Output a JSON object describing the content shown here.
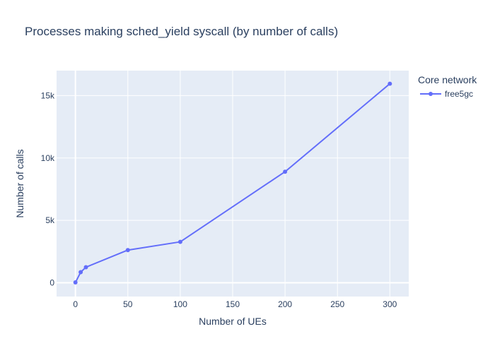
{
  "chart_data": {
    "type": "line",
    "title": "Processes making sched_yield syscall (by number of calls)",
    "xlabel": "Number of UEs",
    "ylabel": "Number of calls",
    "xlim": [
      -18,
      318
    ],
    "ylim": [
      -1100,
      17000
    ],
    "x_ticks": [
      0,
      50,
      100,
      150,
      200,
      250,
      300
    ],
    "x_tick_labels": [
      "0",
      "50",
      "100",
      "150",
      "200",
      "250",
      "300"
    ],
    "y_ticks": [
      0,
      5000,
      10000,
      15000
    ],
    "y_tick_labels": [
      "0",
      "5k",
      "10k",
      "15k"
    ],
    "grid": true,
    "legend": {
      "title": "Core network",
      "placement": "top-right, outside plot"
    },
    "colors": {
      "plot_background": "#E5ECF6",
      "grid": "#ffffff",
      "text": "#2a3f5f",
      "series": "#636EFA"
    },
    "series": [
      {
        "name": "free5gc",
        "mode": "lines+markers",
        "x": [
          0,
          5,
          10,
          50,
          100,
          200,
          300
        ],
        "y": [
          30,
          850,
          1250,
          2620,
          3280,
          8900,
          15950
        ]
      }
    ]
  }
}
